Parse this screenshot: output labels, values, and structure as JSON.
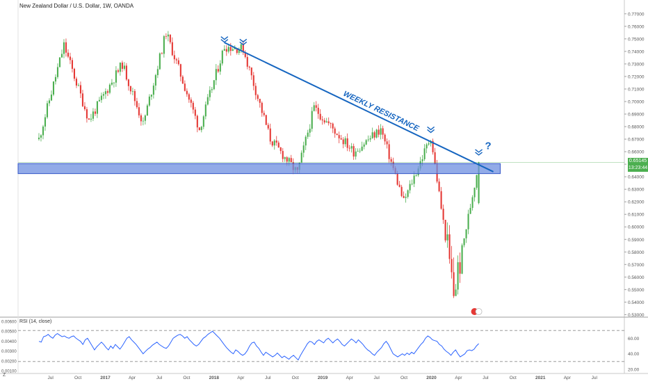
{
  "header": {
    "title": "New Zealand Dollar / U.S. Dollar, 1W, OANDA"
  },
  "rsi": {
    "title": "RSI (14, close)",
    "left_ticks": [
      "0.00600",
      "0.00500",
      "0.00400",
      "0.00300",
      "0.00200",
      "0.00100"
    ],
    "right_ticks": [
      "60.00",
      "40.00",
      "20.00"
    ],
    "upper_level": 70,
    "lower_level": 30
  },
  "price_badge": {
    "price": "0.65145",
    "timer": "13:23:44",
    "color": "#4caf50"
  },
  "annotations": {
    "resistance_label": "WEEKLY RESISTANCE",
    "question_mark": "?",
    "accent_color": "#1565c0",
    "zone_color": "#6d8fe0"
  },
  "corner_label": "Z",
  "chart_data": {
    "type": "candlestick",
    "title": "New Zealand Dollar / U.S. Dollar, 1W, OANDA",
    "x_axis_labels": [
      "Jul",
      "Oct",
      "2017",
      "Apr",
      "Jul",
      "Oct",
      "2018",
      "Apr",
      "Jul",
      "Oct",
      "2019",
      "Apr",
      "Jul",
      "Oct",
      "2020",
      "Apr",
      "Jul",
      "Oct",
      "2021",
      "Apr",
      "Jul"
    ],
    "y_axis_labels": [
      "0.78000",
      "0.77000",
      "0.76000",
      "0.75000",
      "0.74000",
      "0.73000",
      "0.72000",
      "0.71000",
      "0.70000",
      "0.69000",
      "0.68000",
      "0.67000",
      "0.66000",
      "0.65000",
      "0.64000",
      "0.63000",
      "0.62000",
      "0.61000",
      "0.60000",
      "0.59000",
      "0.58000",
      "0.57000",
      "0.56000",
      "0.55000",
      "0.54000",
      "0.53000"
    ],
    "ylim": [
      0.528,
      0.781
    ],
    "current_price": 0.65145,
    "resistance_zone": [
      0.6425,
      0.6505
    ],
    "trendline": [
      {
        "date": "2018-02-05",
        "price": 0.747
      },
      {
        "date": "2020-07-27",
        "price": 0.644
      }
    ],
    "key_points": [
      {
        "date": "2016-05-23",
        "price": 0.67,
        "label": "start"
      },
      {
        "date": "2016-08-15",
        "price": 0.745,
        "label": "high"
      },
      {
        "date": "2016-11-07",
        "price": 0.685,
        "label": "low"
      },
      {
        "date": "2017-02-27",
        "price": 0.73,
        "label": "high"
      },
      {
        "date": "2017-05-08",
        "price": 0.682,
        "label": "low"
      },
      {
        "date": "2017-07-24",
        "price": 0.755,
        "label": "high"
      },
      {
        "date": "2017-11-13",
        "price": 0.678,
        "label": "low"
      },
      {
        "date": "2018-02-05",
        "price": 0.744,
        "label": "high"
      },
      {
        "date": "2018-04-09",
        "price": 0.742,
        "label": "high"
      },
      {
        "date": "2018-07-09",
        "price": 0.67,
        "label": "low"
      },
      {
        "date": "2018-10-08",
        "price": 0.643,
        "label": "low"
      },
      {
        "date": "2018-12-03",
        "price": 0.695,
        "label": "high"
      },
      {
        "date": "2019-04-15",
        "price": 0.66,
        "label": "low"
      },
      {
        "date": "2019-07-15",
        "price": 0.678,
        "label": "high"
      },
      {
        "date": "2019-09-30",
        "price": 0.62,
        "label": "low"
      },
      {
        "date": "2019-12-30",
        "price": 0.672,
        "label": "high"
      },
      {
        "date": "2020-03-16",
        "price": 0.547,
        "label": "low"
      },
      {
        "date": "2020-06-08",
        "price": 0.6515,
        "label": "current"
      }
    ],
    "rsi_series": {
      "name": "RSI (14, close)",
      "levels": [
        70,
        30
      ],
      "values": [
        56,
        55,
        62,
        63,
        65,
        62,
        60,
        64,
        66,
        64,
        62,
        63,
        61,
        60,
        62,
        63,
        60,
        58,
        56,
        52,
        58,
        60,
        55,
        50,
        45,
        49,
        52,
        55,
        52,
        48,
        45,
        50,
        47,
        52,
        49,
        46,
        50,
        55,
        60,
        62,
        58,
        55,
        52,
        48,
        44,
        40,
        43,
        46,
        48,
        51,
        53,
        55,
        52,
        50,
        48,
        47,
        50,
        55,
        60,
        62,
        64,
        65,
        63,
        60,
        62,
        58,
        55,
        52,
        50,
        52,
        56,
        60,
        62,
        65,
        67,
        69,
        66,
        63,
        60,
        56,
        52,
        48,
        45,
        42,
        40,
        45,
        43,
        40,
        38,
        40,
        44,
        50,
        54,
        55,
        50,
        47,
        42,
        38,
        42,
        40,
        38,
        36,
        38,
        41,
        38,
        35,
        37,
        35,
        33,
        36,
        38,
        35,
        32,
        38,
        43,
        48,
        53,
        56,
        55,
        52,
        56,
        58,
        56,
        54,
        58,
        60,
        57,
        54,
        57,
        59,
        56,
        52,
        50,
        53,
        56,
        59,
        57,
        54,
        58,
        55,
        52,
        48,
        45,
        43,
        40,
        38,
        42,
        45,
        48,
        53,
        56,
        52,
        46,
        40,
        38,
        36,
        38,
        40,
        38,
        41,
        39,
        42,
        40,
        44,
        48,
        52,
        55,
        60,
        63,
        61,
        58,
        57,
        56,
        52,
        50,
        46,
        43,
        41,
        38,
        42,
        45,
        40,
        36,
        38,
        40,
        44,
        45,
        44,
        46,
        50,
        53
      ]
    }
  }
}
